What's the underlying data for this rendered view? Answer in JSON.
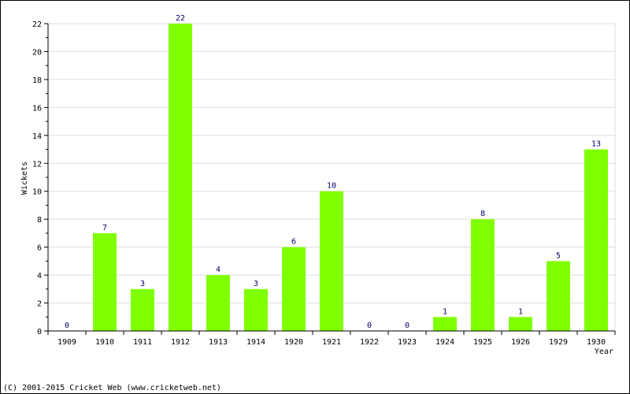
{
  "chart_data": {
    "type": "bar",
    "categories": [
      "1909",
      "1910",
      "1911",
      "1912",
      "1913",
      "1914",
      "1920",
      "1921",
      "1922",
      "1923",
      "1924",
      "1925",
      "1926",
      "1929",
      "1930"
    ],
    "values": [
      0,
      7,
      3,
      22,
      4,
      3,
      6,
      10,
      0,
      0,
      1,
      8,
      1,
      5,
      13
    ],
    "ylabel": "Wickets",
    "xlabel": "Year",
    "ylim": [
      0,
      22
    ],
    "yticks": [
      0,
      2,
      4,
      6,
      8,
      10,
      12,
      14,
      16,
      18,
      20,
      22
    ],
    "grid": true,
    "bar_color": "#80ff00",
    "grid_color": "#dddddd"
  },
  "footer": {
    "copyright": "(C) 2001-2015 Cricket Web (www.cricketweb.net)"
  }
}
